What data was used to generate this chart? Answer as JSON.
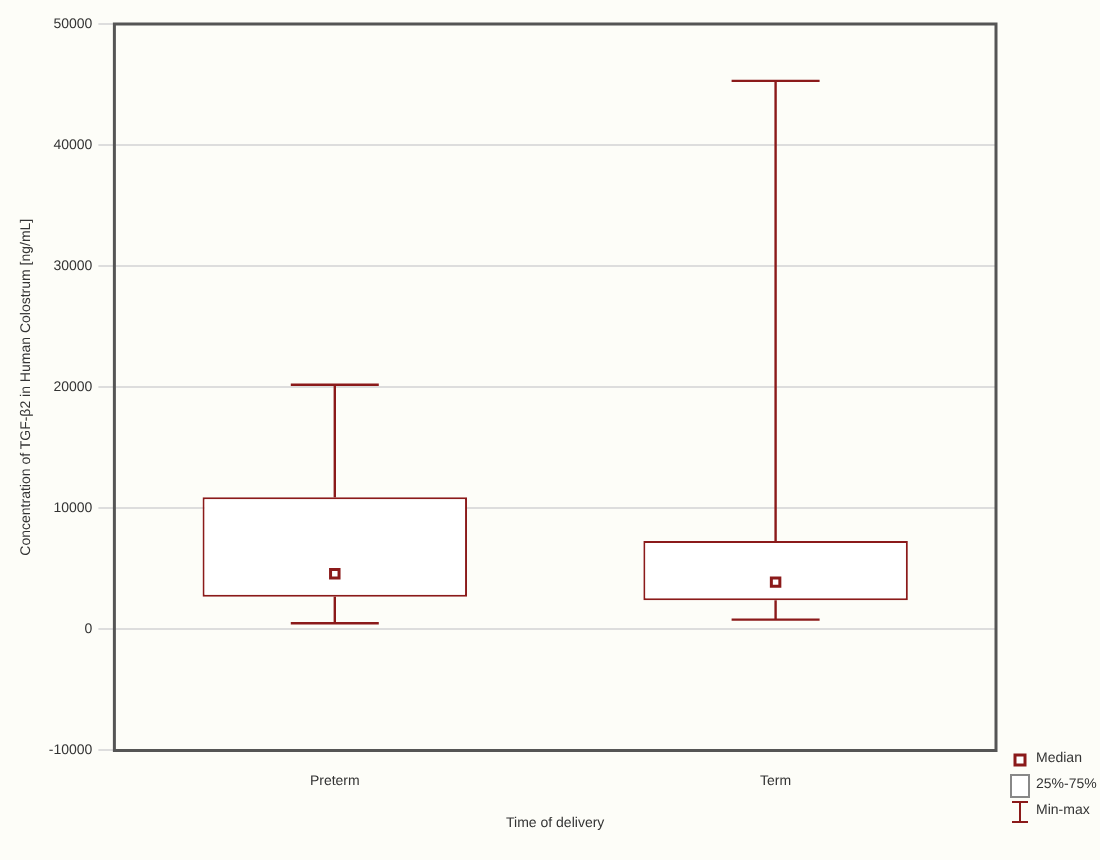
{
  "chart_data": {
    "type": "box",
    "xlabel": "Time of delivery",
    "ylabel": "Concentration of TGF-β2 in Human Colostrum [ng/mL]",
    "categories": [
      "Preterm",
      "Term"
    ],
    "series": [
      {
        "color": "#8b1a1a",
        "boxes": [
          {
            "low": 500,
            "q1": 2700,
            "median": 4600,
            "q3": 10900,
            "high": 20200
          },
          {
            "low": 800,
            "q1": 2400,
            "median": 3900,
            "q3": 7300,
            "high": 45300
          }
        ]
      }
    ],
    "ylim": [
      -10000,
      50000
    ],
    "yticks": [
      -10000,
      0,
      10000,
      20000,
      30000,
      40000,
      50000
    ],
    "grid": "y",
    "marker": "square",
    "annotations": [
      "Median",
      "25%-75%",
      "Min-max"
    ]
  }
}
